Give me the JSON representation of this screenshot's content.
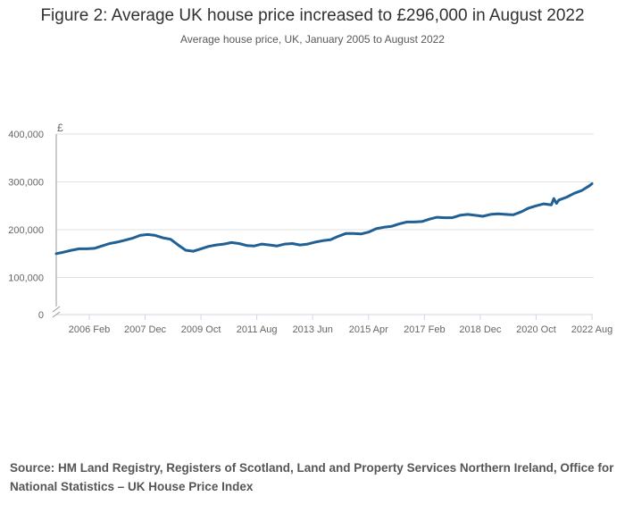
{
  "chart_data": {
    "type": "line",
    "title": "Figure 2: Average UK house price increased to £296,000 in August 2022",
    "subtitle": "Average house price, UK, January 2005 to August 2022",
    "ylabel": "£",
    "xlabel": "",
    "ylim": [
      0,
      400000
    ],
    "yticks": [
      0,
      100000,
      200000,
      300000,
      400000
    ],
    "ytick_labels": [
      "0",
      "100,000",
      "200,000",
      "300,000",
      "400,000"
    ],
    "xtick_labels": [
      "2006 Feb",
      "2007 Dec",
      "2009 Oct",
      "2011 Aug",
      "2013 Jun",
      "2015 Apr",
      "2017 Feb",
      "2018 Dec",
      "2020 Oct",
      "2022 Aug"
    ],
    "xtick_months": [
      13,
      35,
      57,
      79,
      101,
      123,
      145,
      167,
      189,
      211
    ],
    "grid": true,
    "series": [
      {
        "name": "Average house price",
        "color": "#206095",
        "x_months_since_jan_2005": [
          0,
          3,
          6,
          9,
          12,
          15,
          18,
          21,
          24,
          27,
          30,
          33,
          36,
          39,
          42,
          45,
          48,
          51,
          54,
          57,
          60,
          63,
          66,
          69,
          72,
          75,
          78,
          81,
          84,
          87,
          90,
          93,
          96,
          99,
          102,
          105,
          108,
          111,
          114,
          117,
          120,
          123,
          126,
          129,
          132,
          135,
          138,
          141,
          144,
          147,
          150,
          153,
          156,
          159,
          162,
          165,
          168,
          171,
          174,
          177,
          180,
          183,
          186,
          189,
          192,
          195,
          196,
          197,
          198,
          201,
          204,
          207,
          210,
          211
        ],
        "values": [
          150000,
          153000,
          157000,
          160000,
          160000,
          161000,
          166000,
          171000,
          174000,
          178000,
          182000,
          188000,
          190000,
          188000,
          183000,
          180000,
          168000,
          157000,
          155000,
          160000,
          165000,
          168000,
          170000,
          173000,
          171000,
          167000,
          166000,
          170000,
          168000,
          166000,
          170000,
          171000,
          168000,
          170000,
          174000,
          177000,
          179000,
          186000,
          192000,
          192000,
          191000,
          195000,
          202000,
          205000,
          207000,
          212000,
          216000,
          216000,
          217000,
          222000,
          226000,
          225000,
          225000,
          230000,
          232000,
          230000,
          228000,
          232000,
          233000,
          232000,
          231000,
          237000,
          245000,
          250000,
          254000,
          252000,
          265000,
          255000,
          262000,
          268000,
          276000,
          282000,
          292000,
          296000
        ]
      }
    ]
  },
  "source": "Source: HM Land Registry, Registers of Scotland, Land and Property Services Northern Ireland, Office for National Statistics – UK House Price Index"
}
